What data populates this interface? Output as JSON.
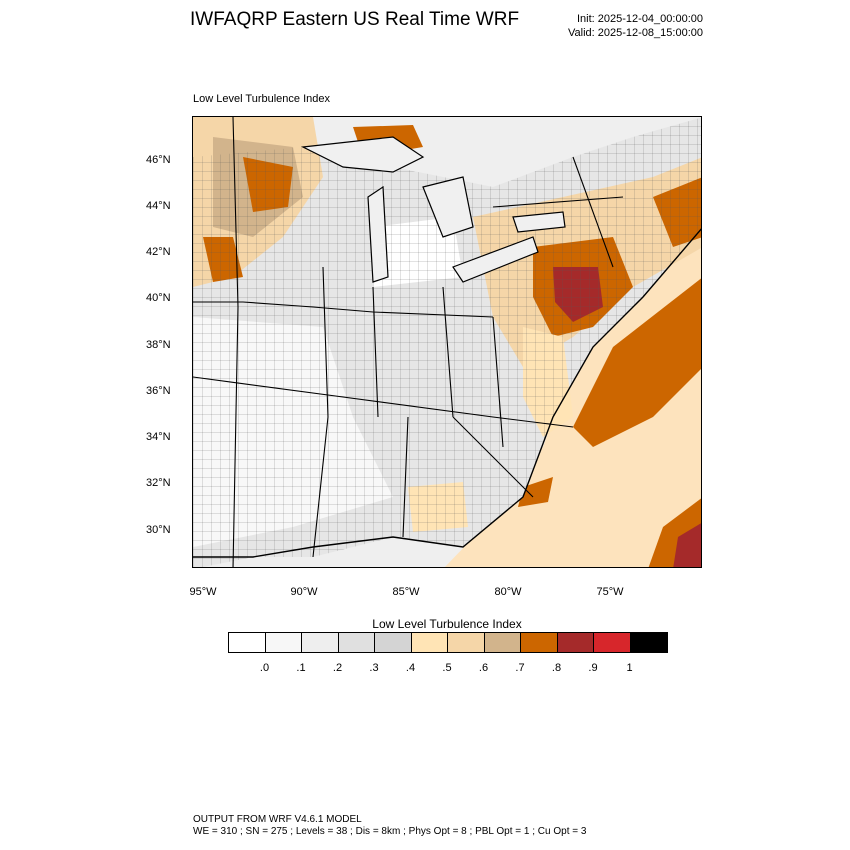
{
  "header": {
    "title": "IWFAQRP Eastern US Real Time WRF",
    "init": "Init: 2025-12-04_00:00:00",
    "valid": "Valid: 2025-12-08_15:00:00"
  },
  "plot": {
    "subtitle": "Low Level Turbulence Index",
    "lat_labels": [
      "46°N",
      "44°N",
      "42°N",
      "40°N",
      "38°N",
      "36°N",
      "34°N",
      "32°N",
      "30°N"
    ],
    "lon_labels": [
      "95°W",
      "90°W",
      "85°W",
      "80°W",
      "75°W"
    ]
  },
  "colorbar": {
    "title": "Low Level Turbulence Index",
    "colors": [
      "#ffffff",
      "#f7f7f7",
      "#eeeeee",
      "#e0e0e0",
      "#d4d4d4",
      "#ffe4b5",
      "#f5d6a8",
      "#d2b48c",
      "#cc6600",
      "#a52a2a",
      "#d7262b",
      "#000000"
    ],
    "labels": [
      ".0",
      ".1",
      ".2",
      ".3",
      ".4",
      ".5",
      ".6",
      ".7",
      ".8",
      ".9",
      "1"
    ]
  },
  "footer": {
    "line1": "OUTPUT FROM WRF V4.6.1 MODEL",
    "line2": "WE = 310 ; SN = 275 ; Levels = 38 ; Dis = 8km ; Phys Opt = 8 ; PBL Opt = 1 ; Cu Opt = 3"
  }
}
